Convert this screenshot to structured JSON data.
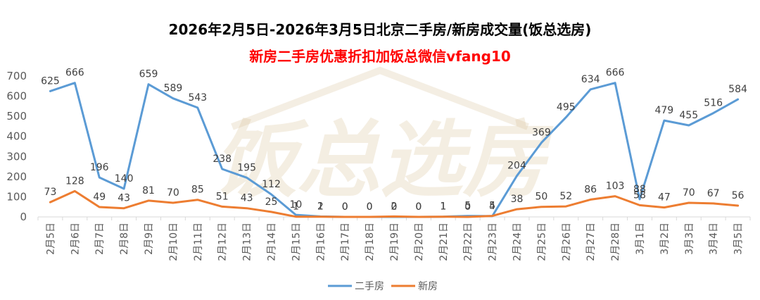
{
  "colors": {
    "secondhand": "#5b9bd5",
    "newhouse": "#ed7d31",
    "subtitle": "#ff0000",
    "watermark": "#d9c39a"
  },
  "watermark_text": "饭总选房",
  "chart_data": {
    "type": "line",
    "title": "2026年2月5日-2026年3月5日北京二手房/新房成交量(饭总选房)",
    "subtitle": "新房二手房优惠折扣加饭总微信vfang10",
    "xlabel": "",
    "ylabel": "",
    "ylim": [
      0,
      700
    ],
    "yticks": [
      0,
      100,
      200,
      300,
      400,
      500,
      600,
      700
    ],
    "grid": false,
    "legend": "bottom",
    "categories": [
      "2月5日",
      "2月6日",
      "2月7日",
      "2月8日",
      "2月9日",
      "2月10日",
      "2月11日",
      "2月12日",
      "2月13日",
      "2月14日",
      "2月15日",
      "2月16日",
      "2月17日",
      "2月18日",
      "2月19日",
      "2月20日",
      "2月21日",
      "2月22日",
      "2月23日",
      "2月24日",
      "2月25日",
      "2月26日",
      "2月27日",
      "2月28日",
      "3月1日",
      "3月2日",
      "3月3日",
      "3月4日",
      "3月5日"
    ],
    "series": [
      {
        "name": "二手房",
        "values": [
          625,
          666,
          196,
          140,
          659,
          589,
          543,
          238,
          195,
          112,
          10,
          2,
          0,
          0,
          0,
          0,
          1,
          5,
          4,
          204,
          369,
          495,
          634,
          666,
          88,
          479,
          455,
          516,
          584
        ]
      },
      {
        "name": "新房",
        "values": [
          73,
          128,
          49,
          43,
          81,
          70,
          85,
          51,
          43,
          25,
          1,
          1,
          0,
          0,
          2,
          0,
          1,
          0,
          5,
          38,
          50,
          52,
          86,
          103,
          58,
          47,
          70,
          67,
          56
        ]
      }
    ]
  }
}
